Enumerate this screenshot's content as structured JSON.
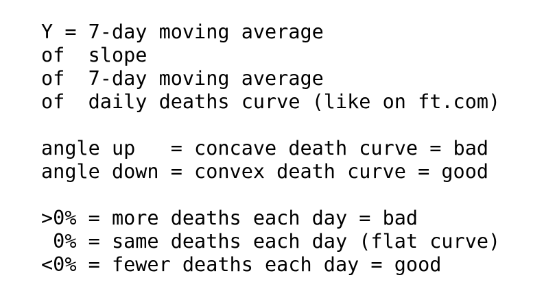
{
  "blocks": [
    {
      "lines": [
        "Y = 7-day moving average",
        "of  slope",
        "of  7-day moving average",
        "of  daily deaths curve (like on ft.com)"
      ]
    },
    {
      "lines": [
        "angle up   = concave death curve = bad",
        "angle down = convex death curve = good"
      ]
    },
    {
      "lines": [
        ">0% = more deaths each day = bad",
        " 0% = same deaths each day (flat curve)",
        "<0% = fewer deaths each day = good"
      ]
    }
  ]
}
